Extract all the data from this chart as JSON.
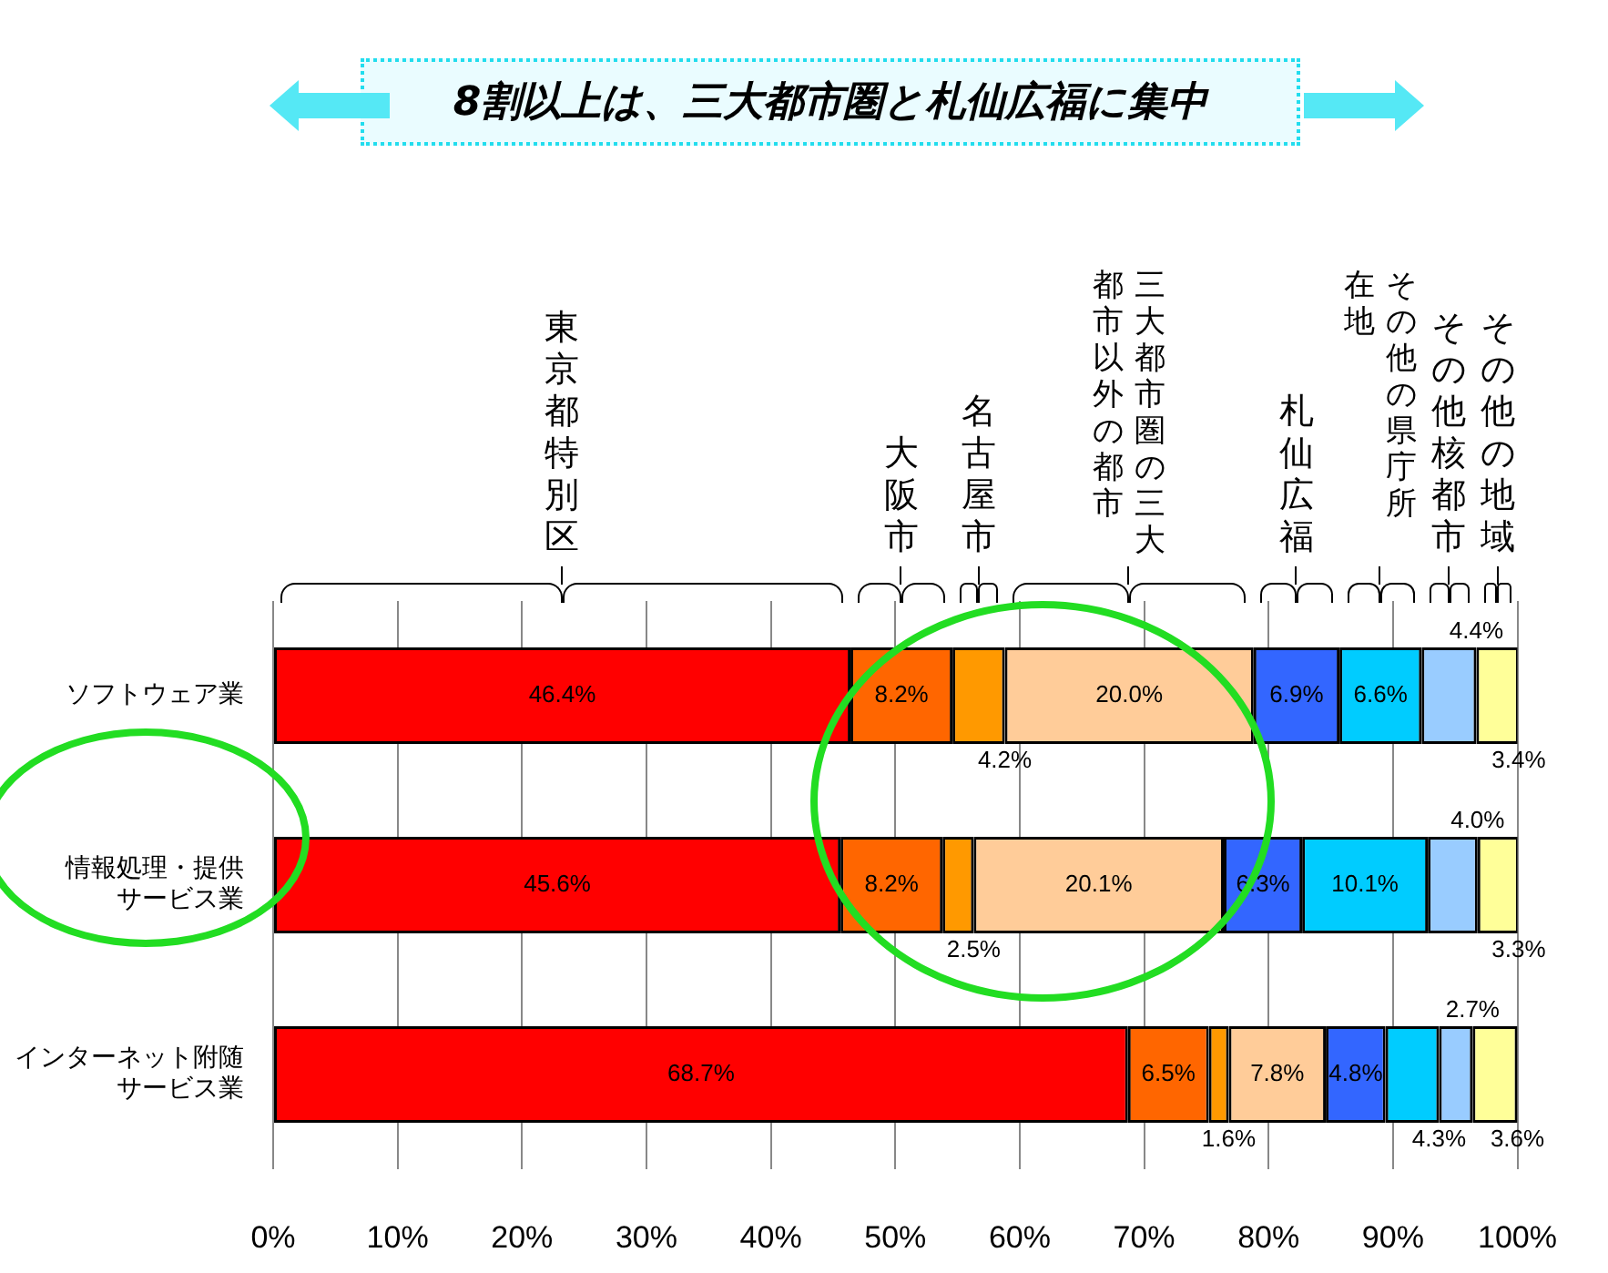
{
  "chart_data": {
    "type": "bar",
    "orientation": "horizontal",
    "stacked": true,
    "annotations": [
      "8割以上は、三大都市圏と札仙広福に集中"
    ],
    "categories": [
      "ソフトウェア業",
      "情報処理・提供サービス業",
      "インターネット附随サービス業"
    ],
    "series": [
      {
        "name": "東京都特別区",
        "color": "#ff0000",
        "values": [
          46.4,
          45.6,
          68.7
        ],
        "value_labels": [
          "46.4%",
          "45.6%",
          "68.7%"
        ]
      },
      {
        "name": "大阪市",
        "color": "#ff6600",
        "values": [
          8.2,
          8.2,
          6.5
        ],
        "value_labels": [
          "8.2%",
          "8.2%",
          "6.5%"
        ]
      },
      {
        "name": "名古屋市",
        "color": "#ff9900",
        "values": [
          4.2,
          2.5,
          1.6
        ],
        "value_labels": [
          "4.2%",
          "2.5%",
          "1.6%"
        ]
      },
      {
        "name": "三大都市圏の三大都市以外の都市",
        "color": "#ffcc99",
        "values": [
          20.0,
          20.1,
          7.8
        ],
        "value_labels": [
          "20.0%",
          "20.1%",
          "7.8%"
        ]
      },
      {
        "name": "札仙広福",
        "color": "#3366ff",
        "values": [
          6.9,
          6.3,
          4.8
        ],
        "value_labels": [
          "6.9%",
          "6.3%",
          "4.8%"
        ]
      },
      {
        "name": "その他の県庁所在地",
        "color": "#00ccff",
        "values": [
          6.6,
          10.1,
          4.3
        ],
        "value_labels": [
          "6.6%",
          "10.1%",
          "4.3%"
        ]
      },
      {
        "name": "その他核都市",
        "color": "#99ccff",
        "values": [
          4.4,
          4.0,
          2.7
        ],
        "value_labels": [
          "4.4%",
          "4.0%",
          "2.7%"
        ]
      },
      {
        "name": "その他の地域",
        "color": "#ffff99",
        "values": [
          3.4,
          3.3,
          3.6
        ],
        "value_labels": [
          "3.4%",
          "3.3%",
          "3.6%"
        ]
      }
    ],
    "xlim": [
      0,
      100
    ],
    "xticks": [
      {
        "value": 0,
        "label": "0%"
      },
      {
        "value": 10,
        "label": "10%"
      },
      {
        "value": 20,
        "label": "20%"
      },
      {
        "value": 30,
        "label": "30%"
      },
      {
        "value": 40,
        "label": "40%"
      },
      {
        "value": 50,
        "label": "50%"
      },
      {
        "value": 60,
        "label": "60%"
      },
      {
        "value": 70,
        "label": "70%"
      },
      {
        "value": 80,
        "label": "80%"
      },
      {
        "value": 90,
        "label": "90%"
      },
      {
        "value": 100,
        "label": "100%"
      }
    ],
    "grid": "x",
    "legend": false
  }
}
